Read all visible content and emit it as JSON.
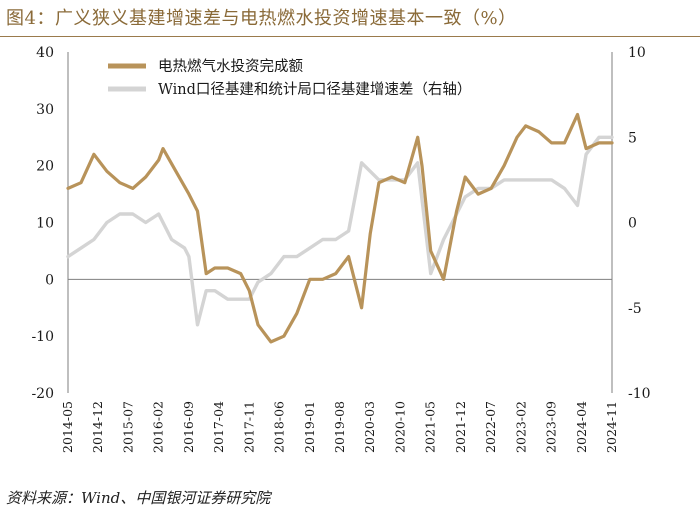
{
  "title": "图4：广义狭义基建增速差与电热燃水投资增速基本一致（%）",
  "source": "资料来源：Wind、中国银河证券研究院",
  "colors": {
    "series1": "#b8935a",
    "series2": "#d4d4d4",
    "axis": "#7f7f7f",
    "title": "#8a6a38"
  },
  "chart_data": {
    "type": "line",
    "x_ticks": [
      "2014-05",
      "2014-12",
      "2015-07",
      "2016-02",
      "2016-09",
      "2017-04",
      "2017-11",
      "2018-06",
      "2019-01",
      "2019-08",
      "2020-03",
      "2020-10",
      "2021-05",
      "2021-12",
      "2022-07",
      "2023-02",
      "2023-09",
      "2024-04",
      "2024-11"
    ],
    "y_left": {
      "ticks": [
        "40",
        "30",
        "20",
        "10",
        "0",
        "-10",
        "-20"
      ],
      "ylim": [
        -20,
        40
      ]
    },
    "y_right": {
      "ticks": [
        "10",
        "5",
        "0",
        "-5",
        "-10"
      ],
      "ylim": [
        -10,
        10
      ]
    },
    "grid": false,
    "legend_position": "top-center",
    "series": [
      {
        "name": "电热燃气水投资完成额",
        "axis": "left",
        "x": [
          "2014-05",
          "2014-08",
          "2014-11",
          "2015-02",
          "2015-05",
          "2015-08",
          "2015-11",
          "2016-02",
          "2016-03",
          "2016-06",
          "2016-09",
          "2016-11",
          "2017-01",
          "2017-03",
          "2017-06",
          "2017-09",
          "2017-11",
          "2018-01",
          "2018-04",
          "2018-07",
          "2018-10",
          "2019-01",
          "2019-04",
          "2019-07",
          "2019-10",
          "2020-01",
          "2020-03",
          "2020-05",
          "2020-08",
          "2020-11",
          "2021-02",
          "2021-03",
          "2021-05",
          "2021-08",
          "2021-11",
          "2022-01",
          "2022-04",
          "2022-07",
          "2022-10",
          "2023-01",
          "2023-03",
          "2023-06",
          "2023-09",
          "2023-12",
          "2024-03",
          "2024-05",
          "2024-08",
          "2024-11"
        ],
        "values": [
          16,
          17,
          22,
          19,
          17,
          16,
          18,
          21,
          23,
          19,
          15,
          12,
          1,
          2,
          2,
          1,
          -2,
          -8,
          -11,
          -10,
          -6,
          0,
          0,
          1,
          4,
          -5,
          8,
          17,
          18,
          17,
          25,
          20,
          5,
          0,
          12,
          18,
          15,
          16,
          20,
          25,
          27,
          26,
          24,
          24,
          29,
          23,
          24,
          24
        ]
      },
      {
        "name": "Wind口径基建和统计局口径基建增速差（右轴）",
        "axis": "right",
        "x": [
          "2014-05",
          "2014-08",
          "2014-11",
          "2015-02",
          "2015-05",
          "2015-08",
          "2015-11",
          "2016-02",
          "2016-05",
          "2016-08",
          "2016-09",
          "2016-11",
          "2017-01",
          "2017-03",
          "2017-06",
          "2017-09",
          "2017-11",
          "2018-01",
          "2018-04",
          "2018-07",
          "2018-10",
          "2019-01",
          "2019-04",
          "2019-07",
          "2019-10",
          "2020-01",
          "2020-03",
          "2020-05",
          "2020-08",
          "2020-11",
          "2021-02",
          "2021-05",
          "2021-08",
          "2021-11",
          "2022-01",
          "2022-04",
          "2022-07",
          "2022-10",
          "2023-01",
          "2023-03",
          "2023-06",
          "2023-09",
          "2023-12",
          "2024-03",
          "2024-05",
          "2024-08",
          "2024-11"
        ],
        "values": [
          -2,
          -1.5,
          -1,
          0,
          0.5,
          0.5,
          0,
          0.5,
          -1,
          -1.5,
          -2,
          -6,
          -4,
          -4,
          -4.5,
          -4.5,
          -4.5,
          -3.5,
          -3,
          -2,
          -2,
          -1.5,
          -1,
          -1,
          -0.5,
          3.5,
          3,
          2.5,
          2.5,
          2.5,
          3.5,
          -3,
          -1,
          0.5,
          1.5,
          2,
          2,
          2.5,
          2.5,
          2.5,
          2.5,
          2.5,
          2,
          1,
          4,
          5,
          5
        ]
      }
    ]
  }
}
